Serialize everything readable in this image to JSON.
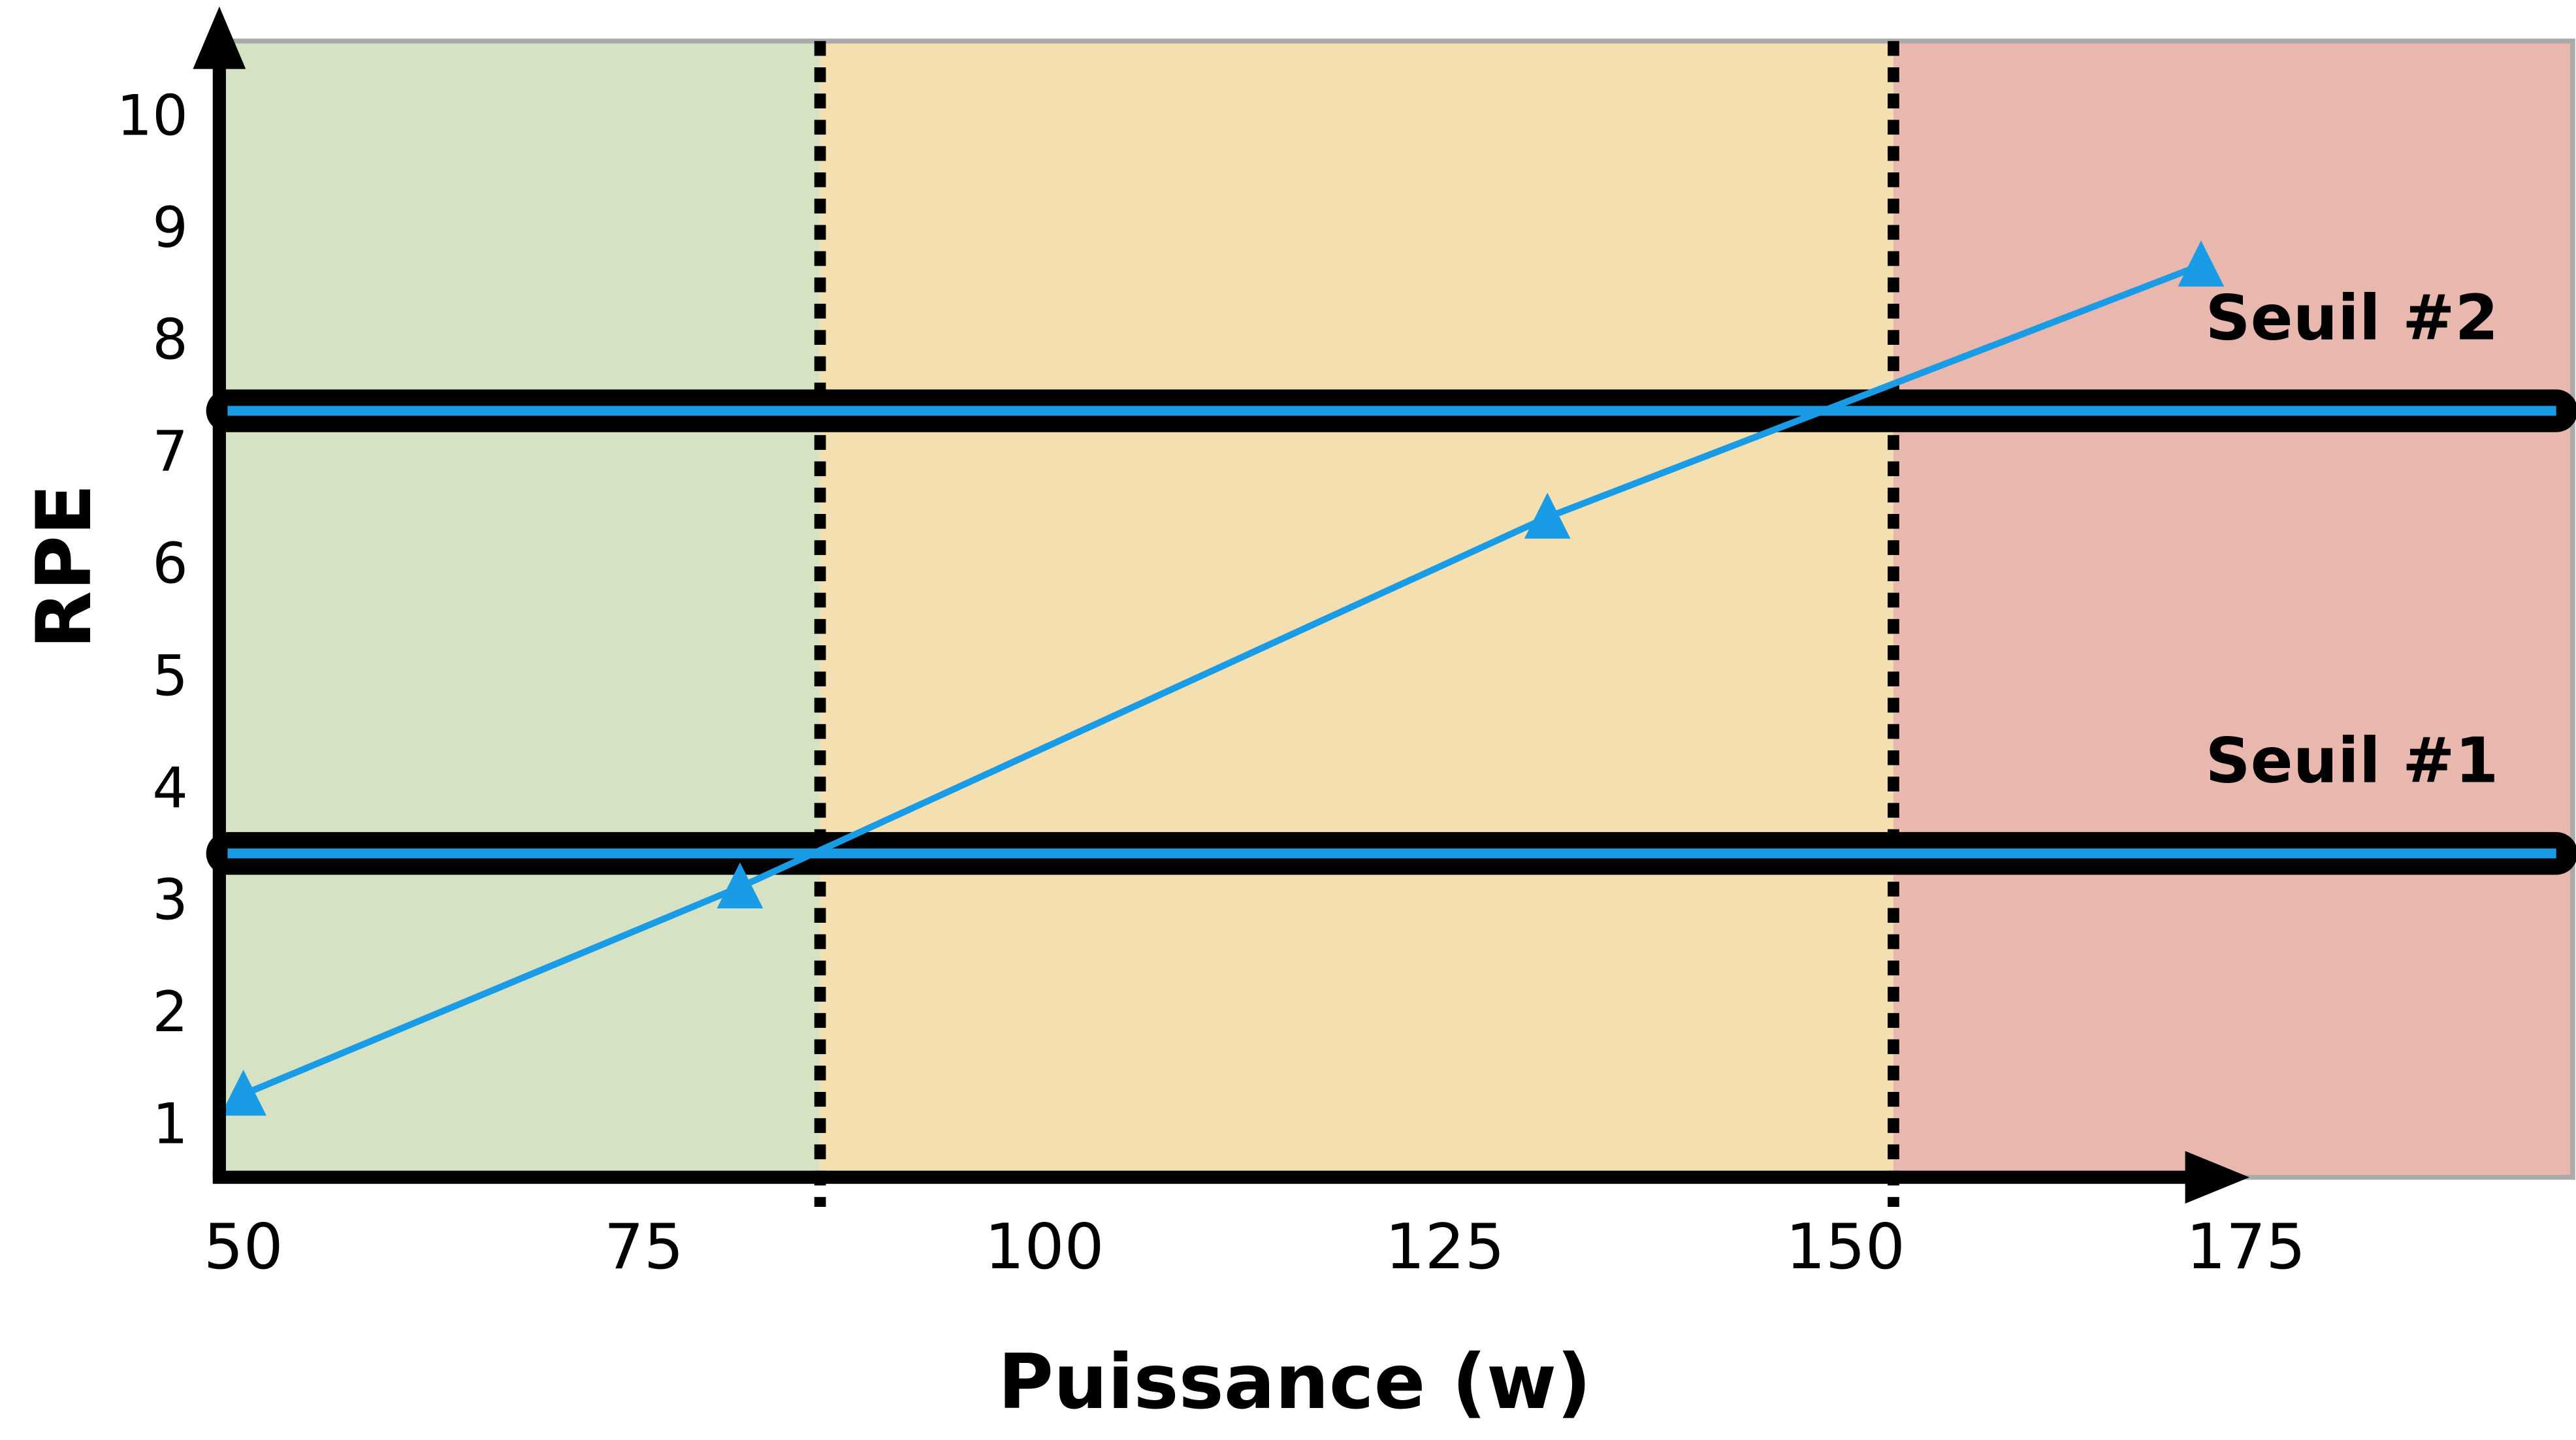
{
  "chart_data": {
    "type": "line",
    "x_label": "Puissance (w)",
    "y_label": "RPE",
    "xlim": [
      48.5,
      195.4
    ],
    "ylim": [
      0.56,
      10.7
    ],
    "xticks": [
      50,
      75,
      100,
      125,
      150,
      175
    ],
    "yticks": [
      1,
      2,
      3,
      4,
      5,
      6,
      7,
      8,
      9,
      10
    ],
    "zone_bounds": [
      86,
      153
    ],
    "zone_colors": [
      "#d5e2c3",
      "#f3dfb0",
      "#e8b7ae"
    ],
    "series": [
      {
        "color": "#1a9be6",
        "x": [
          50,
          81,
          131.4,
          172.2
        ],
        "values": [
          1.3,
          3.15,
          6.45,
          8.7
        ]
      }
    ],
    "thresholds": [
      {
        "label": "Seuil #1",
        "value": 3.45
      },
      {
        "label": "Seuil #2",
        "value": 7.4
      }
    ],
    "threshold_line_color": "#1a9be6"
  }
}
